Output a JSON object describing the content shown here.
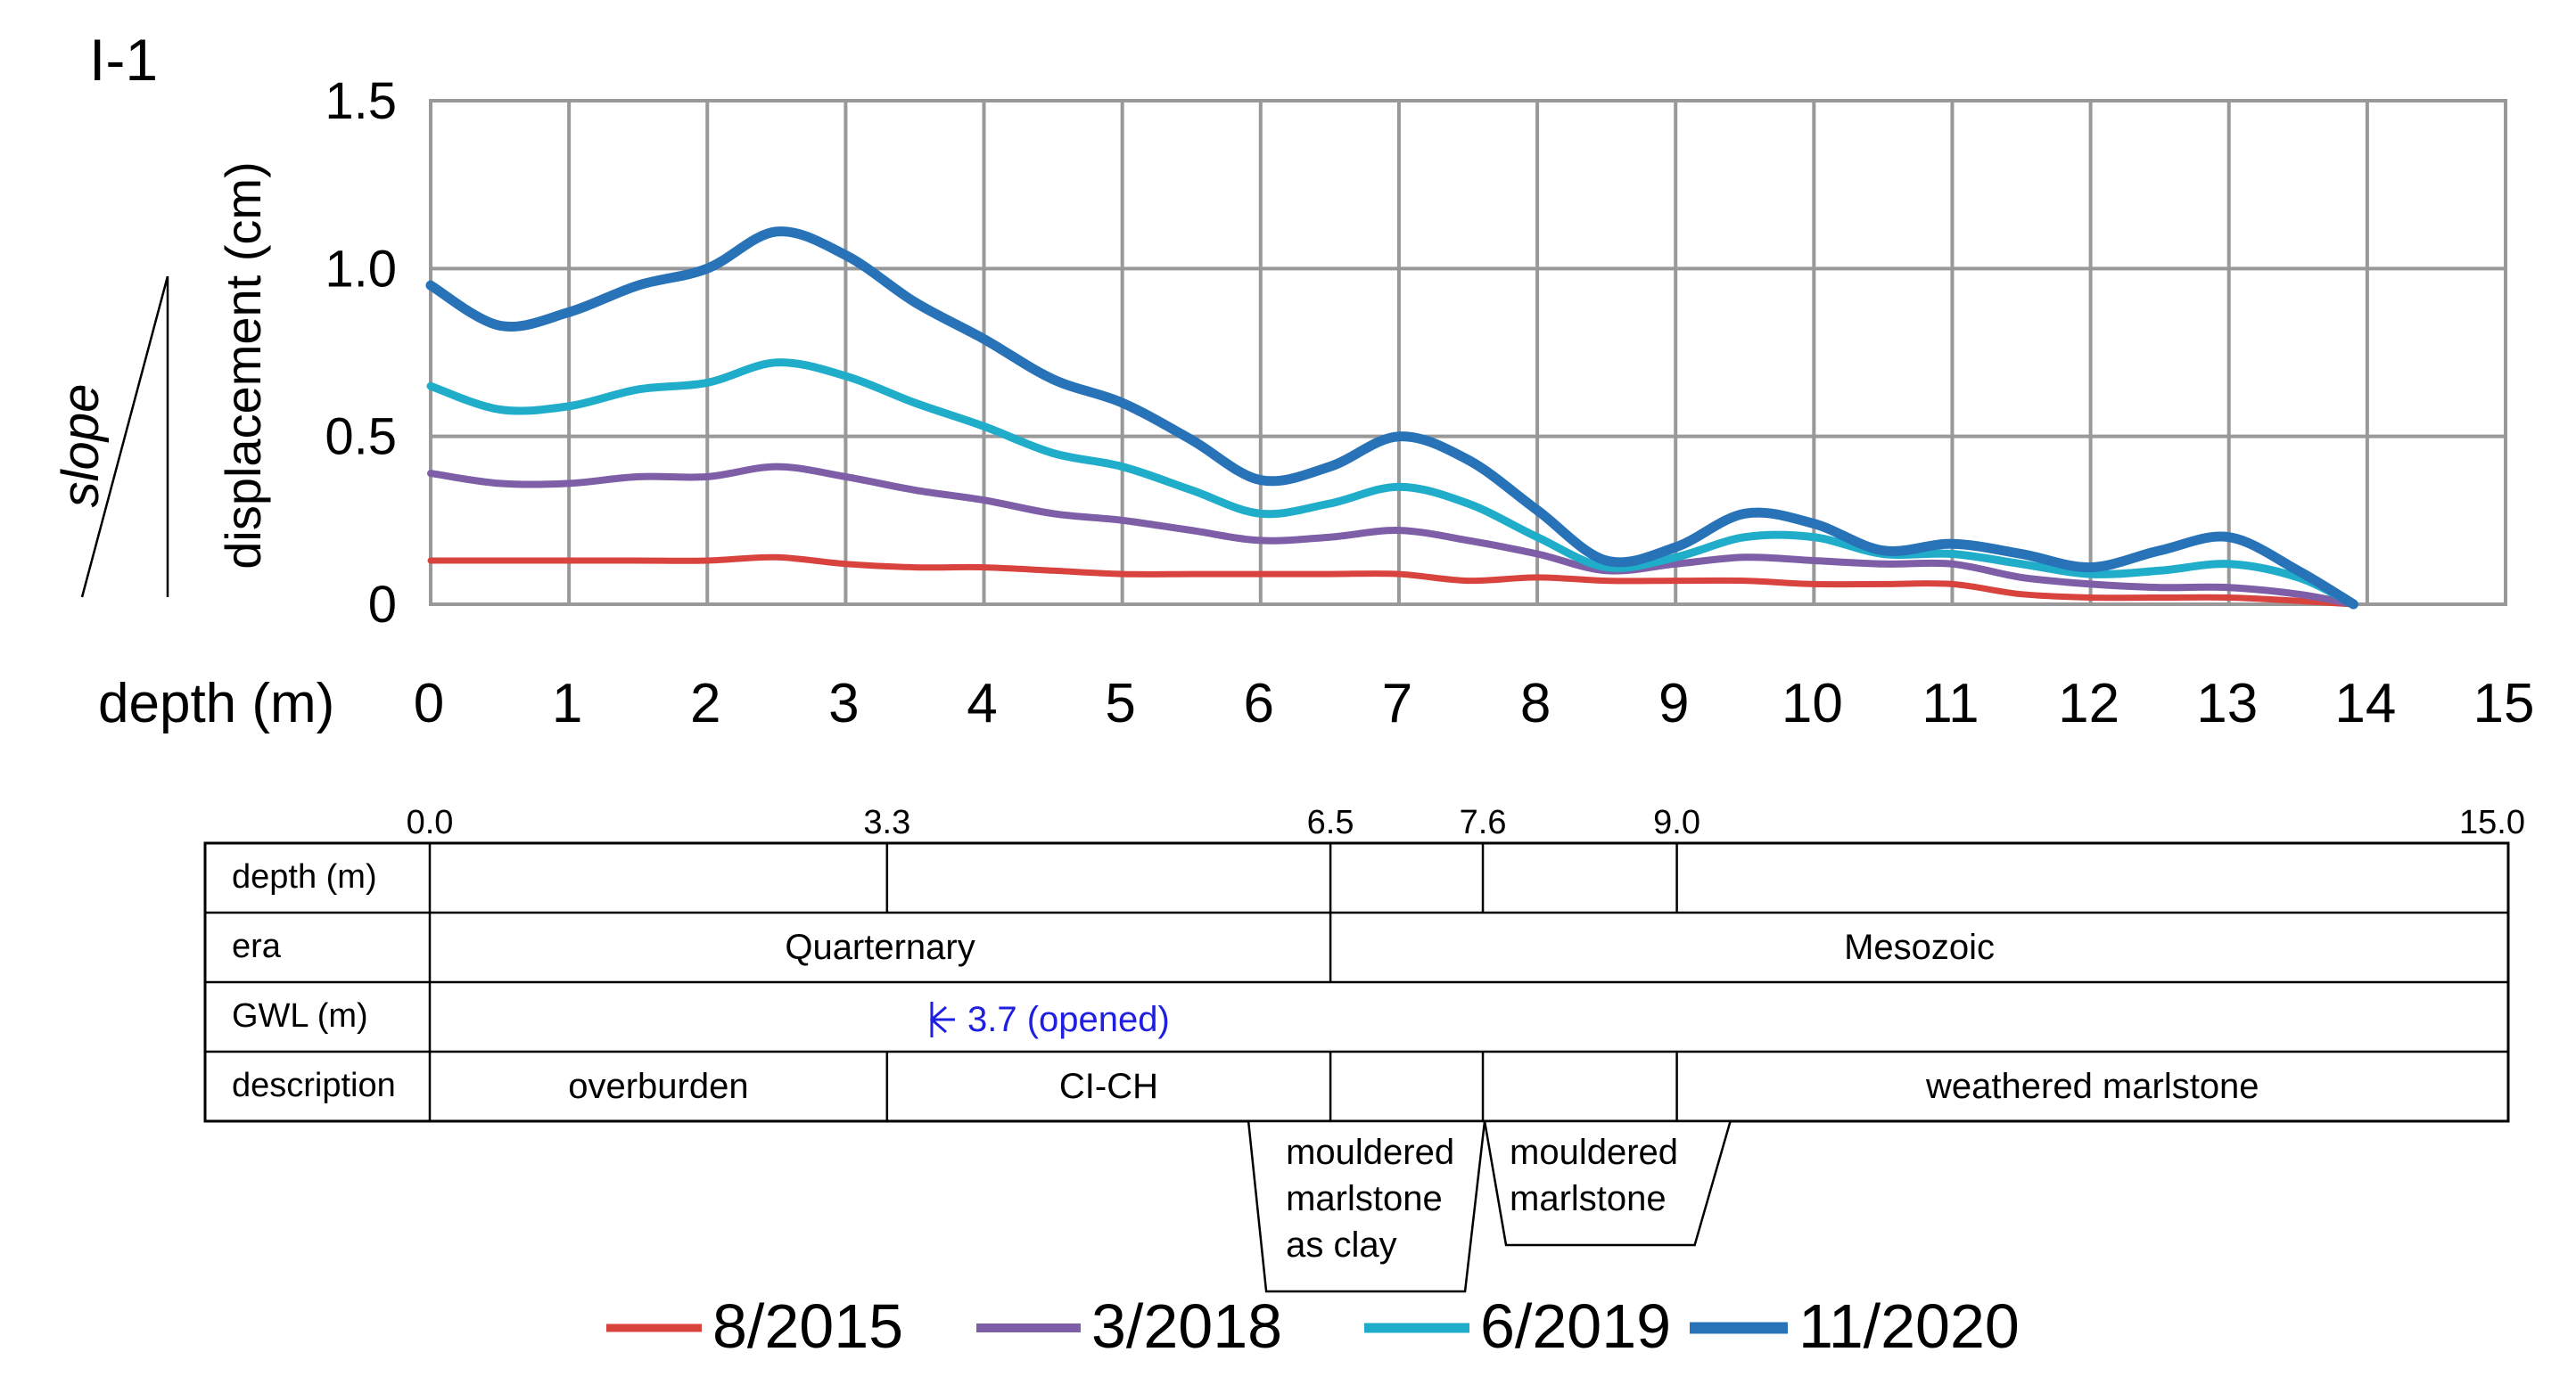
{
  "panel_label": "I-1",
  "slope_label": "slope",
  "chart_data": {
    "type": "line",
    "title": "I-1",
    "xlabel": "depth (m)",
    "ylabel": "displacement (cm)",
    "xlim": [
      0,
      15
    ],
    "ylim": [
      0,
      1.5
    ],
    "x_ticks": [
      0,
      1,
      2,
      3,
      4,
      5,
      6,
      7,
      8,
      9,
      10,
      11,
      12,
      13,
      14,
      15
    ],
    "x_tick_labels": [
      "0",
      "1",
      "2",
      "3",
      "4",
      "5",
      "6",
      "7",
      "8",
      "9",
      "10",
      "11",
      "12",
      "13",
      "14",
      "15"
    ],
    "y_ticks": [
      0,
      0.5,
      1.0,
      1.5
    ],
    "y_tick_labels": [
      "0",
      "0.5",
      "1.0",
      "1.5"
    ],
    "grid": true,
    "legend_position": "bottom",
    "series": [
      {
        "name": "8/2015",
        "color": "#d9433d",
        "x": [
          0,
          0.5,
          1,
          1.5,
          2,
          2.5,
          3,
          3.5,
          4,
          4.5,
          5,
          5.5,
          6,
          6.5,
          7,
          7.5,
          8,
          8.5,
          9,
          9.5,
          10,
          10.5,
          11,
          11.5,
          12,
          12.5,
          13,
          13.5,
          13.9
        ],
        "y": [
          0.13,
          0.13,
          0.13,
          0.13,
          0.13,
          0.14,
          0.12,
          0.11,
          0.11,
          0.1,
          0.09,
          0.09,
          0.09,
          0.09,
          0.09,
          0.07,
          0.08,
          0.07,
          0.07,
          0.07,
          0.06,
          0.06,
          0.06,
          0.03,
          0.02,
          0.02,
          0.02,
          0.01,
          0.0
        ]
      },
      {
        "name": "3/2018",
        "color": "#7e5ea6",
        "x": [
          0,
          0.5,
          1,
          1.5,
          2,
          2.5,
          3,
          3.5,
          4,
          4.5,
          5,
          5.5,
          6,
          6.5,
          7,
          7.5,
          8,
          8.5,
          9,
          9.5,
          10,
          10.5,
          11,
          11.5,
          12,
          12.5,
          13,
          13.5,
          13.9
        ],
        "y": [
          0.39,
          0.36,
          0.36,
          0.38,
          0.38,
          0.41,
          0.38,
          0.34,
          0.31,
          0.27,
          0.25,
          0.22,
          0.19,
          0.2,
          0.22,
          0.19,
          0.15,
          0.1,
          0.12,
          0.14,
          0.13,
          0.12,
          0.12,
          0.08,
          0.06,
          0.05,
          0.05,
          0.03,
          0.0
        ]
      },
      {
        "name": "6/2019",
        "color": "#1fadc9",
        "x": [
          0,
          0.5,
          1,
          1.5,
          2,
          2.5,
          3,
          3.5,
          4,
          4.5,
          5,
          5.5,
          6,
          6.5,
          7,
          7.5,
          8,
          8.5,
          9,
          9.5,
          10,
          10.5,
          11,
          11.5,
          12,
          12.5,
          13,
          13.5,
          13.9
        ],
        "y": [
          0.65,
          0.58,
          0.59,
          0.64,
          0.66,
          0.72,
          0.68,
          0.6,
          0.53,
          0.45,
          0.41,
          0.34,
          0.27,
          0.3,
          0.35,
          0.3,
          0.2,
          0.11,
          0.14,
          0.2,
          0.2,
          0.15,
          0.15,
          0.12,
          0.09,
          0.1,
          0.12,
          0.08,
          0.0
        ]
      },
      {
        "name": "11/2020",
        "color": "#2873b8",
        "x": [
          0,
          0.5,
          1,
          1.5,
          2,
          2.5,
          3,
          3.5,
          4,
          4.5,
          5,
          5.5,
          6,
          6.5,
          7,
          7.5,
          8,
          8.5,
          9,
          9.5,
          10,
          10.5,
          11,
          11.5,
          12,
          12.5,
          13,
          13.5,
          13.9
        ],
        "y": [
          0.95,
          0.83,
          0.87,
          0.95,
          1.0,
          1.11,
          1.04,
          0.9,
          0.79,
          0.67,
          0.6,
          0.49,
          0.37,
          0.41,
          0.5,
          0.43,
          0.28,
          0.13,
          0.17,
          0.27,
          0.24,
          0.16,
          0.18,
          0.15,
          0.11,
          0.16,
          0.2,
          0.1,
          0.0
        ]
      }
    ]
  },
  "profile": {
    "scale_labels": [
      {
        "depth": 0.0,
        "label": "0.0"
      },
      {
        "depth": 3.3,
        "label": "3.3"
      },
      {
        "depth": 6.5,
        "label": "6.5"
      },
      {
        "depth": 7.6,
        "label": "7.6"
      },
      {
        "depth": 9.0,
        "label": "9.0"
      },
      {
        "depth": 15.0,
        "label": "15.0"
      }
    ],
    "row_labels": [
      "depth (m)",
      "era",
      "GWL (m)",
      "description"
    ],
    "era": [
      {
        "from": 0.0,
        "to": 6.5,
        "label": "Quarternary"
      },
      {
        "from": 6.5,
        "to": 15.0,
        "label": "Mesozoic"
      }
    ],
    "gwl": {
      "depth": 3.7,
      "label": "3.7 (opened)",
      "color": "#1f1fe0"
    },
    "description": [
      {
        "from": 0.0,
        "to": 3.3,
        "label": "overburden"
      },
      {
        "from": 3.3,
        "to": 6.5,
        "label": "CI-CH"
      },
      {
        "from": 6.5,
        "to": 7.6,
        "label": ""
      },
      {
        "from": 7.6,
        "to": 9.0,
        "label": ""
      },
      {
        "from": 9.0,
        "to": 15.0,
        "label": "weathered marlstone"
      }
    ],
    "callouts": [
      {
        "from": 6.5,
        "to": 7.6,
        "lines": [
          "mouldered",
          "marlstone",
          "as clay"
        ]
      },
      {
        "from": 7.6,
        "to": 9.0,
        "lines": [
          "mouldered",
          "marlstone"
        ]
      }
    ]
  }
}
